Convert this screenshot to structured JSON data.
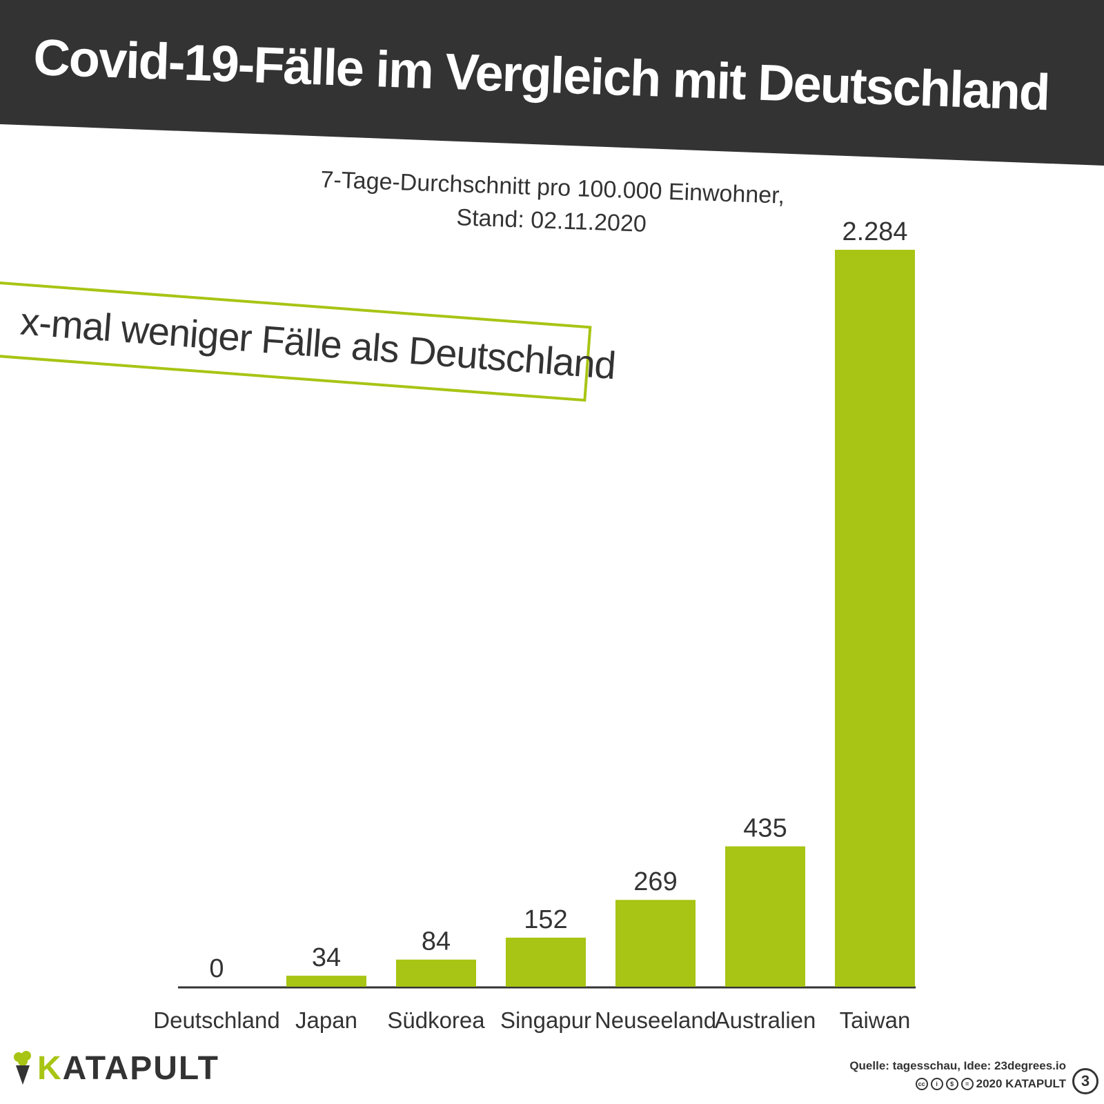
{
  "header": {
    "title": "Covid-19-Fälle im Vergleich mit Deutschland"
  },
  "subtitle": {
    "line1": "7-Tage-Durchschnitt pro 100.000 Einwohner,",
    "line2": "Stand: 02.11.2020"
  },
  "annotation": {
    "text": "x-mal weniger Fälle als Deutschland"
  },
  "chart_data": {
    "type": "bar",
    "title": "Covid-19-Fälle im Vergleich mit Deutschland",
    "subtitle": "7-Tage-Durchschnitt pro 100.000 Einwohner, Stand: 02.11.2020",
    "categories": [
      "Deutschland",
      "Japan",
      "Südkorea",
      "Singapur",
      "Neuseeland",
      "Australien",
      "Taiwan"
    ],
    "values": [
      0,
      34,
      84,
      152,
      269,
      435,
      2284
    ],
    "value_labels": [
      "0",
      "34",
      "84",
      "152",
      "269",
      "435",
      "2.284"
    ],
    "ylim": [
      0,
      2284
    ],
    "xlabel": "",
    "ylabel": "",
    "grid": false,
    "bar_color": "#a8c414"
  },
  "footer": {
    "logo_first_letter": "K",
    "logo_rest": "ATAPULT",
    "source": "Quelle: tagesschau, Idee: 23degrees.io",
    "license": "2020 KATAPULT",
    "page_number": "3"
  },
  "colors": {
    "accent": "#a8c414",
    "dark": "#333333",
    "background": "#ffffff"
  }
}
